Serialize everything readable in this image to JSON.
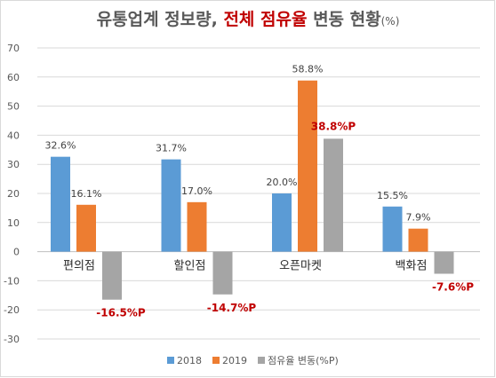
{
  "chart_data": {
    "type": "bar",
    "title": {
      "lead": "유통업계 정보량, ",
      "accent": "전체 점유율",
      "tail": " 변동 현황",
      "unit": "(%)"
    },
    "categories": [
      "편의점",
      "할인점",
      "오픈마켓",
      "백화점"
    ],
    "series": [
      {
        "name": "2018",
        "color": "#5b9bd5",
        "values": [
          32.6,
          31.7,
          20.0,
          15.5
        ],
        "labels": [
          "32.6%",
          "31.7%",
          "20.0%",
          "15.5%"
        ]
      },
      {
        "name": "2019",
        "color": "#ed7d31",
        "values": [
          16.1,
          17.0,
          58.8,
          7.9
        ],
        "labels": [
          "16.1%",
          "17.0%",
          "58.8%",
          "7.9%"
        ]
      },
      {
        "name": "점유율 변동(%P)",
        "color": "#a5a5a5",
        "values": [
          -16.5,
          -14.7,
          38.8,
          -7.6
        ],
        "labels": [
          "-16.5%P",
          "-14.7%P",
          "38.8%P",
          "-7.6%P"
        ]
      }
    ],
    "ylim": [
      -30,
      70
    ],
    "yticks": [
      "-30",
      "-20",
      "-10",
      "0",
      "10",
      "20",
      "30",
      "40",
      "50",
      "60",
      "70"
    ],
    "grid": true,
    "legend_position": "bottom",
    "change_label_color": "#c00000"
  }
}
